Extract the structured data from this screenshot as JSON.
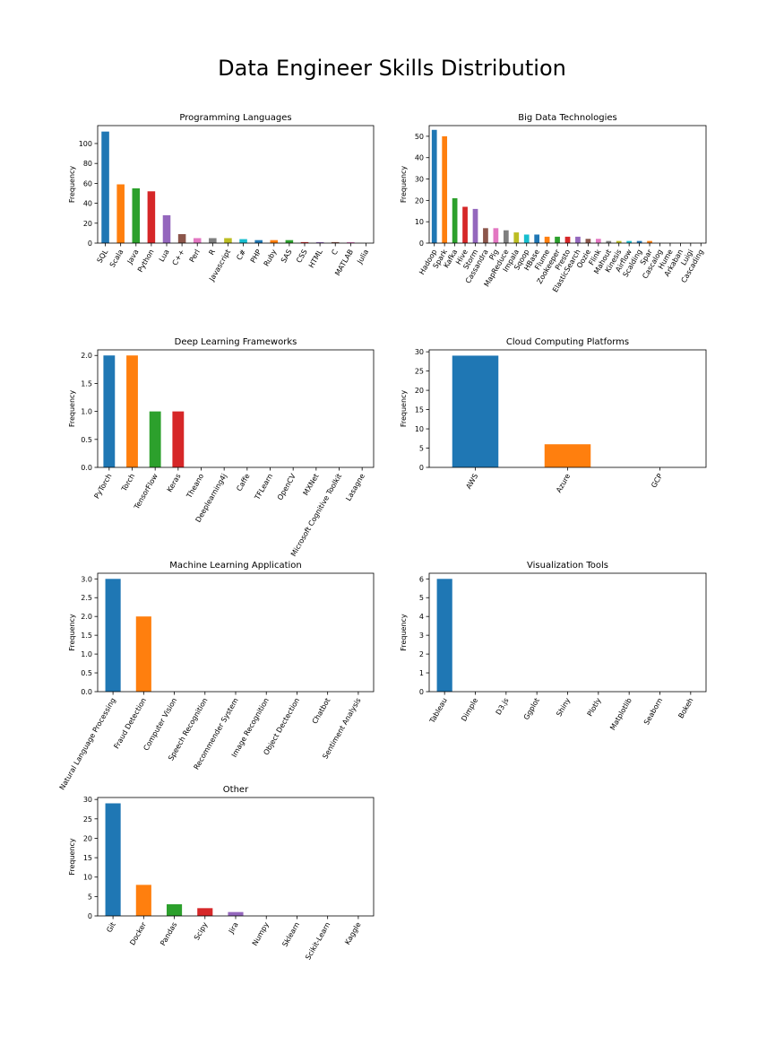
{
  "suptitle": "Data Engineer Skills Distribution",
  "colors": [
    "#1f77b4",
    "#ff7f0e",
    "#2ca02c",
    "#d62728",
    "#9467bd",
    "#8c564b",
    "#e377c2",
    "#7f7f7f",
    "#bcbd22",
    "#17becf"
  ],
  "chart_data": [
    {
      "type": "bar",
      "title": "Programming Languages",
      "ylabel": "Frequency",
      "xlabel": "",
      "ylim": [
        0,
        118
      ],
      "yticks": [
        0,
        20,
        40,
        60,
        80,
        100
      ],
      "categories": [
        "SQL",
        "Scala",
        "Java",
        "Python",
        "Lua",
        "C++",
        "Perl",
        "R",
        "Javascript",
        "C#",
        "PHP",
        "Ruby",
        "SAS",
        "CSS",
        "HTML",
        "C",
        "MATLAB",
        "Julia"
      ],
      "values": [
        112,
        59,
        55,
        52,
        28,
        9,
        5,
        5,
        5,
        4,
        3,
        3,
        3,
        1,
        1,
        1,
        1,
        0
      ]
    },
    {
      "type": "bar",
      "title": "Big Data Technologies",
      "ylabel": "Frequency",
      "xlabel": "",
      "ylim": [
        0,
        55
      ],
      "yticks": [
        0,
        10,
        20,
        30,
        40,
        50
      ],
      "categories": [
        "Hadoop",
        "Spark",
        "Kafka",
        "Hive",
        "Storm",
        "Cassandra",
        "Pig",
        "MapReduce",
        "Impala",
        "Sqoop",
        "HBase",
        "Flume",
        "Zookeeper",
        "Presto",
        "ElasticSearch",
        "Oozie",
        "Flink",
        "Mahout",
        "Kinesis",
        "Airflow",
        "Scalding",
        "Spar",
        "Cascalog",
        "Hume",
        "Arkaban",
        "Luigi",
        "Cascading"
      ],
      "values": [
        53,
        50,
        21,
        17,
        16,
        7,
        7,
        6,
        5,
        4,
        4,
        3,
        3,
        3,
        3,
        2,
        2,
        1,
        1,
        1,
        1,
        1,
        0,
        0,
        0,
        0,
        0
      ]
    },
    {
      "type": "bar",
      "title": "Deep Learning Frameworks",
      "ylabel": "Frequency",
      "xlabel": "",
      "ylim": [
        0,
        2.1
      ],
      "yticks": [
        0.0,
        0.5,
        1.0,
        1.5,
        2.0
      ],
      "categories": [
        "PyTorch",
        "Torch",
        "TensorFlow",
        "Keras",
        "Theano",
        "Deeplearning4j",
        "Caffe",
        "TFLearn",
        "OpenCV",
        "MXNet",
        "Microsoft Cognitive Toolkit",
        "Lasagne"
      ],
      "values": [
        2,
        2,
        1,
        1,
        0,
        0,
        0,
        0,
        0,
        0,
        0,
        0
      ]
    },
    {
      "type": "bar",
      "title": "Cloud Computing Platforms",
      "ylabel": "Frequency",
      "xlabel": "",
      "ylim": [
        0,
        30.5
      ],
      "yticks": [
        0,
        5,
        10,
        15,
        20,
        25,
        30
      ],
      "categories": [
        "AWS",
        "Azure",
        "GCP"
      ],
      "values": [
        29,
        6,
        0
      ]
    },
    {
      "type": "bar",
      "title": "Machine Learning Application",
      "ylabel": "Frequency",
      "xlabel": "",
      "ylim": [
        0,
        3.15
      ],
      "yticks": [
        0.0,
        0.5,
        1.0,
        1.5,
        2.0,
        2.5,
        3.0
      ],
      "categories": [
        "Natural Language Processing",
        "Fraud Detection",
        "Computer Vision",
        "Speech Recognition",
        "Recommender System",
        "Image Recognition",
        "Object Dectection",
        "Chatbot",
        "Sentiment Analysis"
      ],
      "values": [
        3,
        2,
        0,
        0,
        0,
        0,
        0,
        0,
        0
      ]
    },
    {
      "type": "bar",
      "title": "Visualization Tools",
      "ylabel": "Frequency",
      "xlabel": "",
      "ylim": [
        0,
        6.3
      ],
      "yticks": [
        0,
        1,
        2,
        3,
        4,
        5,
        6
      ],
      "categories": [
        "Tableau",
        "Dimple",
        "D3.js",
        "Ggplot",
        "Shiny",
        "Plotly",
        "Matplotlib",
        "Seaborn",
        "Bokeh"
      ],
      "values": [
        6,
        0,
        0,
        0,
        0,
        0,
        0,
        0,
        0
      ]
    },
    {
      "type": "bar",
      "title": "Other",
      "ylabel": "Frequency",
      "xlabel": "",
      "ylim": [
        0,
        30.5
      ],
      "yticks": [
        0,
        5,
        10,
        15,
        20,
        25,
        30
      ],
      "categories": [
        "Git",
        "Docker",
        "Pandas",
        "Scipy",
        "Jira",
        "Numpy",
        "Sklearn",
        "Scikit-Learn",
        "Kaggle"
      ],
      "values": [
        29,
        8,
        3,
        2,
        1,
        0,
        0,
        0,
        0
      ]
    }
  ]
}
